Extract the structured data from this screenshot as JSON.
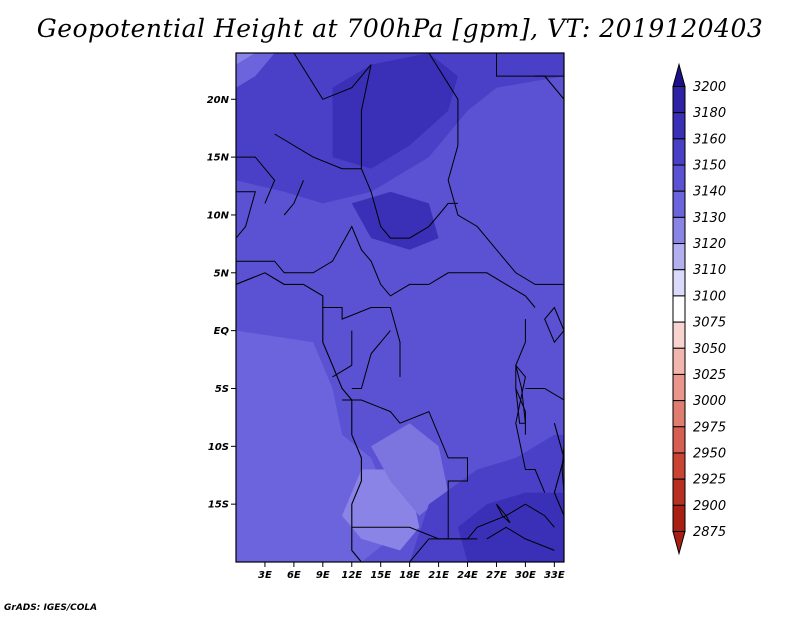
{
  "title": "Geopotential Height at 700hPa [gpm], VT: 2019120403",
  "credit": "GrADS: IGES/COLA",
  "map": {
    "lon_range": [
      0,
      34
    ],
    "lat_range": [
      -20,
      24
    ],
    "lat_ticks": [
      {
        "lat": 20,
        "label": "20N"
      },
      {
        "lat": 15,
        "label": "15N"
      },
      {
        "lat": 10,
        "label": "10N"
      },
      {
        "lat": 5,
        "label": "5N"
      },
      {
        "lat": 0,
        "label": "EQ"
      },
      {
        "lat": -5,
        "label": "5S"
      },
      {
        "lat": -10,
        "label": "10S"
      },
      {
        "lat": -15,
        "label": "15S"
      }
    ],
    "lon_ticks": [
      {
        "lon": 3,
        "label": "3E"
      },
      {
        "lon": 6,
        "label": "6E"
      },
      {
        "lon": 9,
        "label": "9E"
      },
      {
        "lon": 12,
        "label": "12E"
      },
      {
        "lon": 15,
        "label": "15E"
      },
      {
        "lon": 18,
        "label": "18E"
      },
      {
        "lon": 21,
        "label": "21E"
      },
      {
        "lon": 24,
        "label": "24E"
      },
      {
        "lon": 27,
        "label": "27E"
      },
      {
        "lon": 30,
        "label": "30E"
      },
      {
        "lon": 33,
        "label": "33E"
      }
    ]
  },
  "colorbar": {
    "levels": [
      "3200",
      "3180",
      "3160",
      "3150",
      "3140",
      "3130",
      "3120",
      "3110",
      "3100",
      "3075",
      "3050",
      "3025",
      "3000",
      "2975",
      "2950",
      "2925",
      "2900",
      "2875"
    ],
    "colors": [
      "#1e0f8a",
      "#2f22a4",
      "#3a30b8",
      "#4a40c8",
      "#5a52d2",
      "#6c64dc",
      "#8a84e6",
      "#b4b0f0",
      "#dcdafa",
      "#ffffff",
      "#f8d4d0",
      "#f2b6ae",
      "#ea968c",
      "#e07c70",
      "#d65e52",
      "#ca4434",
      "#b83024",
      "#a82014"
    ]
  },
  "field_regions": [
    {
      "name": "north-high",
      "color": "#4a40c8",
      "pts": [
        [
          0,
          24
        ],
        [
          34,
          24
        ],
        [
          34,
          22
        ],
        [
          27,
          21
        ],
        [
          24,
          19
        ],
        [
          20,
          15
        ],
        [
          14,
          12
        ],
        [
          9,
          11
        ],
        [
          5,
          12
        ],
        [
          0,
          13
        ]
      ]
    },
    {
      "name": "sahara-core",
      "color": "#3a30b8",
      "pts": [
        [
          10,
          21
        ],
        [
          14,
          23
        ],
        [
          20,
          24
        ],
        [
          23,
          22
        ],
        [
          22,
          19
        ],
        [
          18,
          16
        ],
        [
          14,
          14
        ],
        [
          10,
          15
        ]
      ]
    },
    {
      "name": "chad-core",
      "color": "#3a30b8",
      "pts": [
        [
          12,
          11
        ],
        [
          16,
          12
        ],
        [
          20,
          11
        ],
        [
          21,
          8
        ],
        [
          18,
          7
        ],
        [
          14,
          8
        ]
      ]
    },
    {
      "name": "nw-pale",
      "color": "#6c64dc",
      "pts": [
        [
          0,
          24
        ],
        [
          4,
          24
        ],
        [
          2,
          22
        ],
        [
          0,
          21
        ]
      ]
    },
    {
      "name": "nw-lighter",
      "color": "#8a84e6",
      "pts": [
        [
          0,
          24
        ],
        [
          2,
          24
        ],
        [
          0,
          23
        ]
      ]
    },
    {
      "name": "southwest-light",
      "color": "#6c64dc",
      "pts": [
        [
          0,
          0
        ],
        [
          8,
          -1
        ],
        [
          10,
          -5
        ],
        [
          11,
          -9
        ],
        [
          14,
          -11
        ],
        [
          16,
          -15
        ],
        [
          16,
          -18
        ],
        [
          13,
          -20
        ],
        [
          0,
          -20
        ]
      ]
    },
    {
      "name": "angola-lighter",
      "color": "#8a84e6",
      "pts": [
        [
          11,
          -16
        ],
        [
          13,
          -12
        ],
        [
          16,
          -12
        ],
        [
          18,
          -13
        ],
        [
          19,
          -17
        ],
        [
          17,
          -19
        ],
        [
          13,
          -18
        ]
      ]
    },
    {
      "name": "angola-light2",
      "color": "#7c75e0",
      "pts": [
        [
          14,
          -10
        ],
        [
          18,
          -8
        ],
        [
          21,
          -10
        ],
        [
          22,
          -14
        ],
        [
          19,
          -16
        ],
        [
          16,
          -13
        ]
      ]
    },
    {
      "name": "se-high",
      "color": "#4a40c8",
      "pts": [
        [
          18,
          -20
        ],
        [
          20,
          -15
        ],
        [
          25,
          -12
        ],
        [
          29,
          -11
        ],
        [
          33,
          -9
        ],
        [
          34,
          -9
        ],
        [
          34,
          -20
        ]
      ]
    },
    {
      "name": "se-core",
      "color": "#3a30b8",
      "pts": [
        [
          26,
          -15
        ],
        [
          30,
          -14
        ],
        [
          34,
          -14
        ],
        [
          34,
          -20
        ],
        [
          24,
          -20
        ],
        [
          23,
          -17
        ]
      ]
    }
  ],
  "borders": [
    [
      [
        6,
        24
      ],
      [
        9,
        20
      ],
      [
        12,
        21
      ],
      [
        14,
        23
      ]
    ],
    [
      [
        14,
        23
      ],
      [
        13,
        19
      ],
      [
        13,
        14
      ]
    ],
    [
      [
        19,
        24
      ],
      [
        20,
        24
      ],
      [
        23,
        20
      ],
      [
        23,
        16
      ]
    ],
    [
      [
        4,
        17
      ],
      [
        8,
        15
      ],
      [
        11,
        14
      ],
      [
        13,
        14
      ]
    ],
    [
      [
        0,
        15
      ],
      [
        2,
        15
      ],
      [
        4,
        13
      ],
      [
        3,
        11
      ]
    ],
    [
      [
        13,
        14
      ],
      [
        14,
        12
      ],
      [
        15,
        9
      ],
      [
        16,
        8
      ],
      [
        18,
        8
      ],
      [
        20,
        9
      ],
      [
        21,
        10
      ],
      [
        22,
        11
      ],
      [
        23,
        11
      ]
    ],
    [
      [
        23,
        16
      ],
      [
        22,
        13
      ],
      [
        23,
        10
      ],
      [
        25,
        9
      ],
      [
        27,
        7
      ],
      [
        29,
        5
      ],
      [
        31,
        4
      ],
      [
        34,
        4
      ]
    ],
    [
      [
        0,
        6
      ],
      [
        2,
        6
      ],
      [
        4,
        6
      ],
      [
        5,
        5
      ],
      [
        8,
        5
      ],
      [
        10,
        6
      ],
      [
        12,
        9
      ],
      [
        13,
        7
      ],
      [
        14,
        6
      ],
      [
        15,
        4
      ],
      [
        16,
        3
      ],
      [
        18,
        4
      ],
      [
        20,
        4
      ],
      [
        22,
        5
      ],
      [
        24,
        5
      ],
      [
        26,
        5
      ],
      [
        28,
        4
      ],
      [
        30,
        3
      ],
      [
        31,
        2
      ]
    ],
    [
      [
        9,
        2
      ],
      [
        11,
        2
      ],
      [
        11,
        1
      ],
      [
        14,
        2
      ],
      [
        16,
        2
      ],
      [
        17,
        -1
      ],
      [
        17,
        -4
      ]
    ],
    [
      [
        12,
        0
      ],
      [
        12,
        -3
      ],
      [
        10,
        -4
      ]
    ],
    [
      [
        16,
        0
      ],
      [
        14,
        -2
      ],
      [
        13,
        -5
      ],
      [
        12,
        -5
      ]
    ],
    [
      [
        30,
        1
      ],
      [
        30,
        -1
      ],
      [
        29,
        -3
      ],
      [
        30,
        -4
      ],
      [
        29,
        -8
      ],
      [
        30,
        -12
      ],
      [
        31,
        -12
      ],
      [
        32,
        -14
      ]
    ],
    [
      [
        11,
        -6
      ],
      [
        13,
        -6
      ],
      [
        16,
        -7
      ],
      [
        17,
        -8
      ],
      [
        20,
        -7
      ],
      [
        21,
        -9
      ],
      [
        22,
        -11
      ],
      [
        24,
        -11
      ],
      [
        24,
        -13
      ],
      [
        22,
        -13
      ],
      [
        22,
        -18
      ],
      [
        24,
        -18
      ],
      [
        25,
        -17
      ],
      [
        28,
        -16
      ],
      [
        30,
        -15
      ],
      [
        32,
        -16
      ],
      [
        33,
        -17
      ]
    ],
    [
      [
        12,
        -17
      ],
      [
        14,
        -17
      ],
      [
        18,
        -17
      ],
      [
        21,
        -18
      ],
      [
        25,
        -18
      ]
    ],
    [
      [
        30,
        -5
      ],
      [
        32,
        -5
      ],
      [
        34,
        -6
      ]
    ],
    [
      [
        18,
        -20
      ],
      [
        20,
        -18
      ],
      [
        22,
        -18
      ]
    ],
    [
      [
        27,
        24
      ],
      [
        27,
        22
      ],
      [
        34,
        22
      ]
    ],
    [
      [
        0,
        12
      ],
      [
        2,
        12
      ],
      [
        1,
        9
      ],
      [
        0,
        8
      ]
    ],
    [
      [
        7,
        13
      ],
      [
        6,
        11
      ],
      [
        5,
        10
      ]
    ],
    [
      [
        29,
        -5
      ],
      [
        30,
        -7
      ],
      [
        30,
        -9
      ]
    ],
    [
      [
        26,
        -18
      ],
      [
        28,
        -17
      ],
      [
        30,
        -18
      ],
      [
        33,
        -19
      ]
    ]
  ],
  "coast": [
    [
      [
        0,
        4
      ],
      [
        3,
        5
      ],
      [
        5,
        4
      ],
      [
        7,
        4
      ],
      [
        9,
        3
      ],
      [
        9,
        1
      ],
      [
        9,
        0
      ],
      [
        9,
        -1
      ],
      [
        10,
        -3
      ],
      [
        11,
        -5
      ],
      [
        12,
        -6
      ],
      [
        12,
        -9
      ],
      [
        13,
        -11
      ],
      [
        13,
        -13
      ],
      [
        12,
        -15
      ],
      [
        12,
        -17
      ],
      [
        12,
        -19
      ],
      [
        13,
        -20
      ]
    ],
    [
      [
        31,
        22
      ],
      [
        32,
        22
      ],
      [
        33,
        21
      ],
      [
        34,
        20
      ]
    ],
    [
      [
        33,
        -8
      ],
      [
        34,
        -11
      ],
      [
        33,
        -14
      ],
      [
        34,
        -16
      ],
      [
        35,
        -20
      ]
    ]
  ],
  "lakes": [
    [
      [
        32,
        1
      ],
      [
        33,
        -1
      ],
      [
        34,
        0
      ],
      [
        33,
        2
      ]
    ],
    [
      [
        29,
        -3
      ],
      [
        29.6,
        -5
      ],
      [
        30,
        -8
      ],
      [
        29.4,
        -8
      ],
      [
        29,
        -5
      ]
    ],
    [
      [
        34,
        -10
      ],
      [
        34.3,
        -12
      ],
      [
        34.6,
        -14
      ],
      [
        34,
        -14
      ],
      [
        33.8,
        -12
      ]
    ],
    [
      [
        27,
        -15
      ],
      [
        28,
        -16
      ],
      [
        28.4,
        -16.6
      ],
      [
        27.6,
        -16
      ]
    ]
  ]
}
